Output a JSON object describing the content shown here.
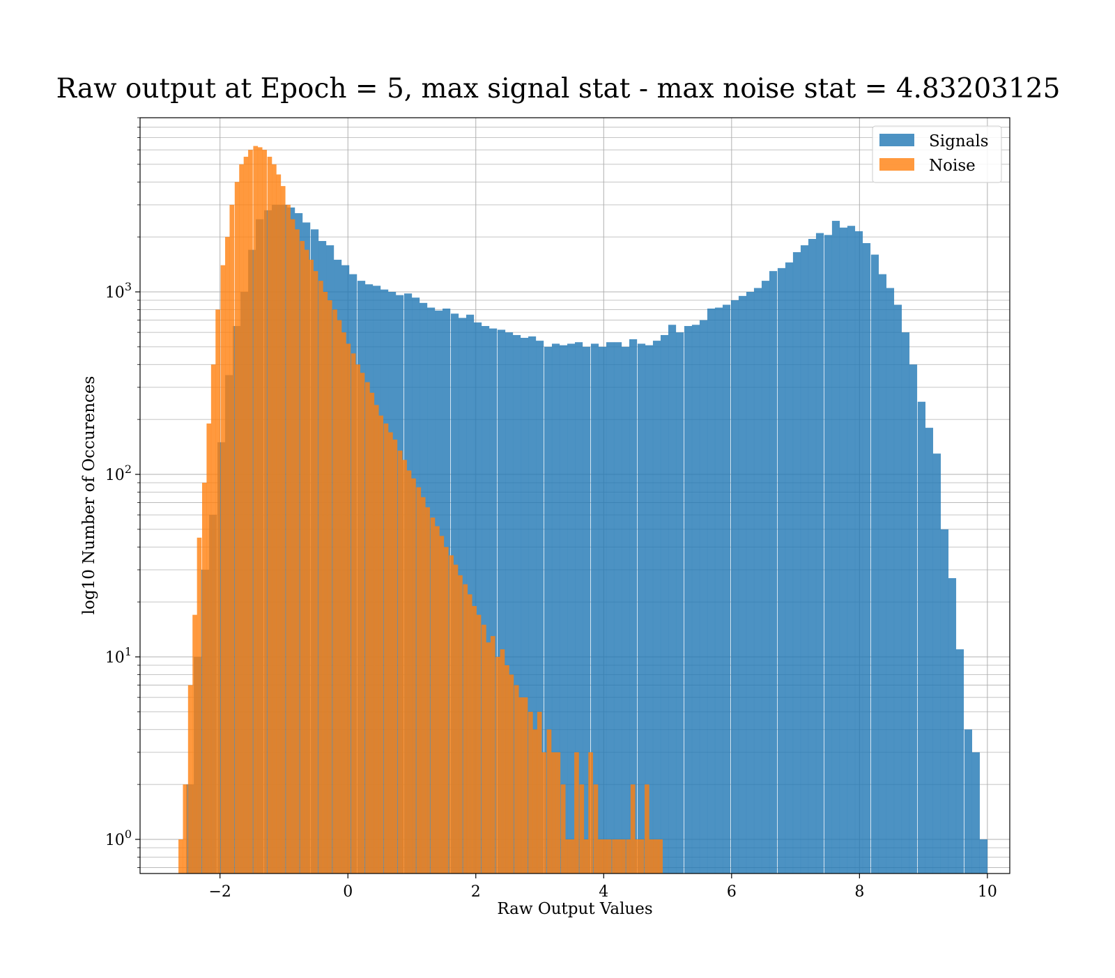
{
  "chart_data": {
    "type": "bar",
    "title": "Raw output at Epoch = 5, max signal stat - max noise stat = 4.83203125",
    "xlabel": "Raw Output Values",
    "ylabel": "log10 Number of Occurences",
    "yscale": "log",
    "xlim": [
      -3.25,
      10.35
    ],
    "ylim": [
      0.65,
      9000
    ],
    "grid": true,
    "legend_placement": "top-right",
    "x_ticks": [
      {
        "value": -2,
        "label": "−2"
      },
      {
        "value": 0,
        "label": "0"
      },
      {
        "value": 2,
        "label": "2"
      },
      {
        "value": 4,
        "label": "4"
      },
      {
        "value": 6,
        "label": "6"
      },
      {
        "value": 8,
        "label": "8"
      },
      {
        "value": 10,
        "label": "10"
      }
    ],
    "y_ticks": [
      {
        "value": 1,
        "base": "10",
        "exp": "0"
      },
      {
        "value": 10,
        "base": "10",
        "exp": "1"
      },
      {
        "value": 100,
        "base": "10",
        "exp": "2"
      },
      {
        "value": 1000,
        "base": "10",
        "exp": "3"
      }
    ],
    "series": [
      {
        "name": "Signals",
        "color": "#1f77b4",
        "bin_width": 0.1215,
        "bins": [
          [
            -2.53,
            2
          ],
          [
            -2.41,
            10
          ],
          [
            -2.29,
            30
          ],
          [
            -2.17,
            60
          ],
          [
            -2.04,
            150
          ],
          [
            -1.92,
            350
          ],
          [
            -1.8,
            650
          ],
          [
            -1.68,
            1000
          ],
          [
            -1.56,
            1700
          ],
          [
            -1.44,
            2500
          ],
          [
            -1.31,
            2800
          ],
          [
            -1.19,
            3000
          ],
          [
            -1.07,
            3000
          ],
          [
            -0.95,
            2900
          ],
          [
            -0.83,
            2700
          ],
          [
            -0.71,
            2400
          ],
          [
            -0.58,
            2200
          ],
          [
            -0.46,
            1900
          ],
          [
            -0.34,
            1800
          ],
          [
            -0.22,
            1500
          ],
          [
            -0.1,
            1400
          ],
          [
            0.02,
            1250
          ],
          [
            0.15,
            1150
          ],
          [
            0.27,
            1100
          ],
          [
            0.39,
            1080
          ],
          [
            0.51,
            1030
          ],
          [
            0.63,
            1000
          ],
          [
            0.75,
            960
          ],
          [
            0.88,
            980
          ],
          [
            1.0,
            930
          ],
          [
            1.12,
            870
          ],
          [
            1.24,
            820
          ],
          [
            1.36,
            790
          ],
          [
            1.48,
            810
          ],
          [
            1.61,
            760
          ],
          [
            1.73,
            720
          ],
          [
            1.85,
            750
          ],
          [
            1.97,
            680
          ],
          [
            2.09,
            650
          ],
          [
            2.21,
            630
          ],
          [
            2.34,
            620
          ],
          [
            2.46,
            600
          ],
          [
            2.58,
            580
          ],
          [
            2.7,
            560
          ],
          [
            2.82,
            570
          ],
          [
            2.94,
            540
          ],
          [
            3.07,
            500
          ],
          [
            3.19,
            520
          ],
          [
            3.31,
            510
          ],
          [
            3.43,
            520
          ],
          [
            3.55,
            530
          ],
          [
            3.67,
            500
          ],
          [
            3.8,
            520
          ],
          [
            3.92,
            500
          ],
          [
            4.04,
            530
          ],
          [
            4.16,
            530
          ],
          [
            4.28,
            500
          ],
          [
            4.4,
            550
          ],
          [
            4.53,
            520
          ],
          [
            4.65,
            510
          ],
          [
            4.77,
            540
          ],
          [
            4.89,
            580
          ],
          [
            5.01,
            660
          ],
          [
            5.13,
            600
          ],
          [
            5.26,
            650
          ],
          [
            5.38,
            660
          ],
          [
            5.5,
            700
          ],
          [
            5.62,
            810
          ],
          [
            5.74,
            820
          ],
          [
            5.86,
            850
          ],
          [
            5.99,
            900
          ],
          [
            6.11,
            950
          ],
          [
            6.23,
            1000
          ],
          [
            6.35,
            1050
          ],
          [
            6.47,
            1150
          ],
          [
            6.59,
            1300
          ],
          [
            6.72,
            1350
          ],
          [
            6.84,
            1450
          ],
          [
            6.96,
            1650
          ],
          [
            7.08,
            1800
          ],
          [
            7.2,
            1950
          ],
          [
            7.32,
            2100
          ],
          [
            7.45,
            2050
          ],
          [
            7.57,
            2450
          ],
          [
            7.69,
            2250
          ],
          [
            7.81,
            2300
          ],
          [
            7.93,
            2150
          ],
          [
            8.05,
            1850
          ],
          [
            8.18,
            1600
          ],
          [
            8.3,
            1250
          ],
          [
            8.42,
            1050
          ],
          [
            8.54,
            850
          ],
          [
            8.66,
            600
          ],
          [
            8.78,
            400
          ],
          [
            8.91,
            250
          ],
          [
            9.03,
            180
          ],
          [
            9.15,
            130
          ],
          [
            9.27,
            50
          ],
          [
            9.39,
            27
          ],
          [
            9.51,
            11
          ],
          [
            9.64,
            4
          ],
          [
            9.76,
            3
          ],
          [
            9.88,
            1
          ]
        ]
      },
      {
        "name": "Noise",
        "color": "#ff7f0e",
        "bin_width": 0.0728,
        "bins": [
          [
            -2.65,
            1
          ],
          [
            -2.58,
            2
          ],
          [
            -2.5,
            7
          ],
          [
            -2.43,
            17
          ],
          [
            -2.36,
            45
          ],
          [
            -2.28,
            90
          ],
          [
            -2.21,
            190
          ],
          [
            -2.14,
            400
          ],
          [
            -2.07,
            800
          ],
          [
            -1.99,
            1400
          ],
          [
            -1.92,
            2000
          ],
          [
            -1.85,
            3000
          ],
          [
            -1.77,
            4000
          ],
          [
            -1.7,
            5000
          ],
          [
            -1.63,
            5500
          ],
          [
            -1.56,
            6000
          ],
          [
            -1.48,
            6300
          ],
          [
            -1.41,
            6200
          ],
          [
            -1.34,
            6000
          ],
          [
            -1.26,
            5500
          ],
          [
            -1.19,
            5000
          ],
          [
            -1.12,
            4400
          ],
          [
            -1.05,
            3800
          ],
          [
            -0.97,
            3000
          ],
          [
            -0.9,
            2500
          ],
          [
            -0.83,
            2200
          ],
          [
            -0.75,
            1900
          ],
          [
            -0.68,
            1700
          ],
          [
            -0.61,
            1500
          ],
          [
            -0.54,
            1300
          ],
          [
            -0.46,
            1150
          ],
          [
            -0.39,
            1000
          ],
          [
            -0.32,
            900
          ],
          [
            -0.24,
            800
          ],
          [
            -0.17,
            700
          ],
          [
            -0.1,
            600
          ],
          [
            -0.03,
            520
          ],
          [
            0.05,
            460
          ],
          [
            0.12,
            400
          ],
          [
            0.19,
            360
          ],
          [
            0.27,
            320
          ],
          [
            0.34,
            280
          ],
          [
            0.41,
            240
          ],
          [
            0.48,
            210
          ],
          [
            0.56,
            190
          ],
          [
            0.63,
            170
          ],
          [
            0.7,
            155
          ],
          [
            0.78,
            135
          ],
          [
            0.85,
            120
          ],
          [
            0.92,
            105
          ],
          [
            0.99,
            95
          ],
          [
            1.07,
            85
          ],
          [
            1.14,
            75
          ],
          [
            1.21,
            66
          ],
          [
            1.29,
            58
          ],
          [
            1.36,
            52
          ],
          [
            1.43,
            46
          ],
          [
            1.5,
            40
          ],
          [
            1.58,
            36
          ],
          [
            1.65,
            32
          ],
          [
            1.72,
            28
          ],
          [
            1.8,
            25
          ],
          [
            1.87,
            22
          ],
          [
            1.94,
            19
          ],
          [
            2.01,
            17
          ],
          [
            2.09,
            15
          ],
          [
            2.16,
            12
          ],
          [
            2.23,
            13
          ],
          [
            2.31,
            10
          ],
          [
            2.38,
            11
          ],
          [
            2.45,
            9
          ],
          [
            2.52,
            8
          ],
          [
            2.6,
            7
          ],
          [
            2.67,
            6
          ],
          [
            2.74,
            6
          ],
          [
            2.82,
            5
          ],
          [
            2.89,
            4
          ],
          [
            2.96,
            5
          ],
          [
            3.03,
            3
          ],
          [
            3.11,
            4
          ],
          [
            3.18,
            3
          ],
          [
            3.25,
            3
          ],
          [
            3.33,
            2
          ],
          [
            3.4,
            1
          ],
          [
            3.47,
            1
          ],
          [
            3.54,
            3
          ],
          [
            3.62,
            2
          ],
          [
            3.69,
            1
          ],
          [
            3.76,
            3
          ],
          [
            3.84,
            2
          ],
          [
            3.91,
            1
          ],
          [
            3.98,
            1
          ],
          [
            4.05,
            1
          ],
          [
            4.13,
            1
          ],
          [
            4.2,
            1
          ],
          [
            4.27,
            1
          ],
          [
            4.35,
            1
          ],
          [
            4.42,
            2
          ],
          [
            4.49,
            1
          ],
          [
            4.56,
            1
          ],
          [
            4.64,
            2
          ],
          [
            4.71,
            1
          ],
          [
            4.78,
            1
          ],
          [
            4.85,
            1
          ]
        ]
      }
    ]
  }
}
